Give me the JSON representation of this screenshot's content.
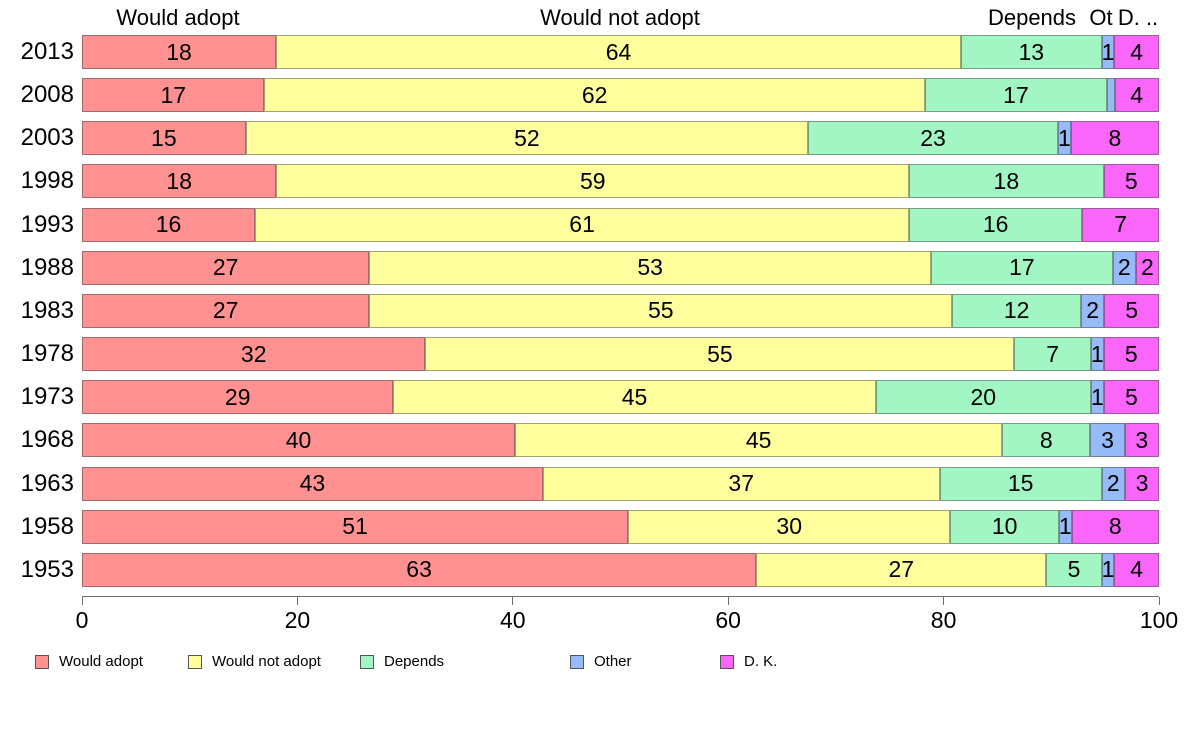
{
  "column_headers": {
    "h1": "Would adopt",
    "h2": "Would not adopt",
    "h3": "Depends",
    "h4": "Ot",
    "h5": "D. .."
  },
  "chart_data": {
    "type": "bar",
    "orientation": "horizontal-stacked",
    "title": "",
    "xlabel": "",
    "ylabel": "",
    "xlim": [
      0,
      100
    ],
    "x_ticks": [
      0,
      20,
      40,
      60,
      80,
      100
    ],
    "grid": false,
    "legend_position": "bottom",
    "categories": [
      "2013",
      "2008",
      "2003",
      "1998",
      "1993",
      "1988",
      "1983",
      "1978",
      "1973",
      "1968",
      "1963",
      "1958",
      "1953"
    ],
    "series": [
      {
        "name": "Would adopt",
        "color": "#ff9191",
        "values": [
          18,
          17,
          15,
          18,
          16,
          27,
          27,
          32,
          29,
          40,
          43,
          51,
          63
        ]
      },
      {
        "name": "Would not adopt",
        "color": "#ffff9e",
        "values": [
          64,
          62,
          52,
          59,
          61,
          53,
          55,
          55,
          45,
          45,
          37,
          30,
          27
        ]
      },
      {
        "name": "Depends",
        "color": "#a2f6c3",
        "values": [
          13,
          17,
          23,
          18,
          16,
          17,
          12,
          7,
          20,
          8,
          15,
          10,
          5
        ]
      },
      {
        "name": "Other",
        "color": "#97baf8",
        "values": [
          1,
          0.5,
          1,
          0,
          0,
          2,
          2,
          1,
          1,
          3,
          2,
          1,
          1
        ]
      },
      {
        "name": "D. K.",
        "color": "#f966f9",
        "values": [
          4,
          4,
          8,
          5,
          7,
          2,
          5,
          5,
          5,
          3,
          3,
          8,
          4
        ]
      }
    ]
  },
  "legend": {
    "items": [
      {
        "label": "Would adopt"
      },
      {
        "label": "Would not adopt"
      },
      {
        "label": "Depends"
      },
      {
        "label": "Other"
      },
      {
        "label": "D. K."
      }
    ]
  }
}
